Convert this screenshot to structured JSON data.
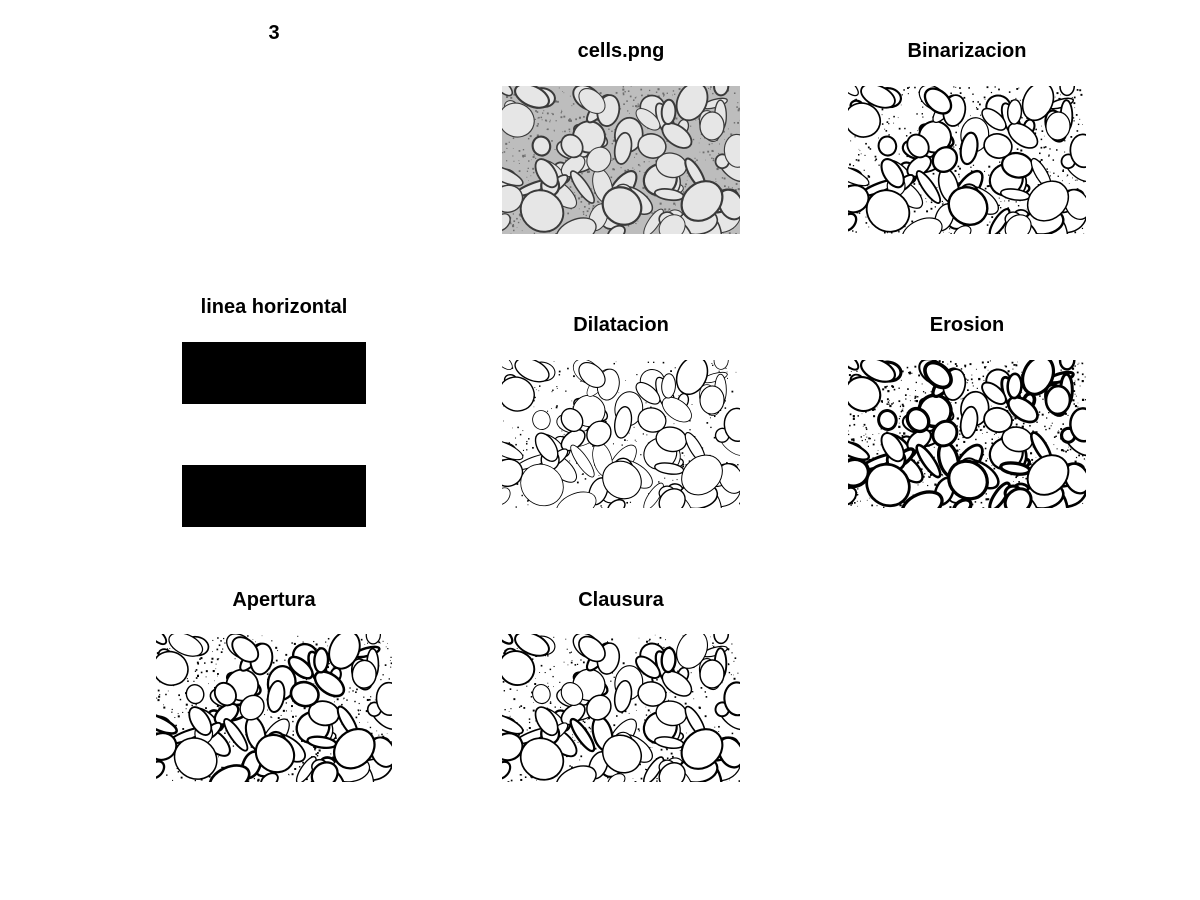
{
  "figure": {
    "number": "3"
  },
  "panels": {
    "original": {
      "title": "cells.png"
    },
    "binary": {
      "title": "Binarizacion"
    },
    "strel": {
      "title": "linea horizontal"
    },
    "dilation": {
      "title": "Dilatacion"
    },
    "erosion": {
      "title": "Erosion"
    },
    "opening": {
      "title": "Apertura"
    },
    "closing": {
      "title": "Clausura"
    }
  },
  "colors": {
    "background": "#ffffff",
    "foreground": "#000000",
    "gray_background": "#c8c8c8"
  }
}
